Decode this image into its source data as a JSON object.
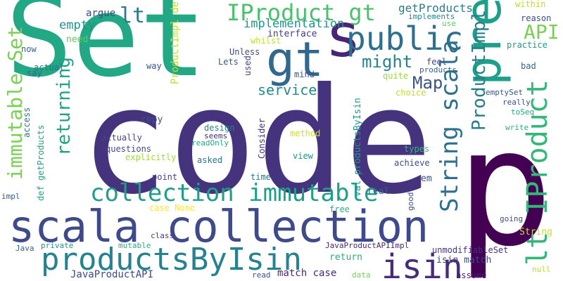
{
  "words": [
    {
      "text": "code",
      "color": "#46337e"
    },
    {
      "text": "p",
      "color": "#440154"
    },
    {
      "text": "Set",
      "color": "#22a884"
    },
    {
      "text": "scala collection",
      "color": "#3e4a89"
    },
    {
      "text": "s",
      "color": "#482576"
    },
    {
      "text": "pre",
      "color": "#1f9e89"
    },
    {
      "text": "gt",
      "color": "#31688e"
    },
    {
      "text": "public",
      "color": "#2d708e"
    },
    {
      "text": "productsByIsin",
      "color": "#26828e"
    },
    {
      "text": "isin",
      "color": "#472c7a"
    },
    {
      "text": "lt IProduct",
      "color": "#35b779"
    },
    {
      "text": "collection immutable",
      "color": "#1f9e89"
    },
    {
      "text": "immutable Set",
      "color": "#7ad151"
    },
    {
      "text": "String scala",
      "color": "#2c728e"
    },
    {
      "text": "ProductImpl",
      "color": "#277f8e"
    },
    {
      "text": "IProduct gt",
      "color": "#4ac16d"
    },
    {
      "text": "lt",
      "color": "#2a788e"
    },
    {
      "text": "API",
      "color": "#7ad151"
    },
    {
      "text": "might",
      "color": "#26828e"
    },
    {
      "text": "Map",
      "color": "#3b528b"
    },
    {
      "text": "returning",
      "color": "#20a486"
    },
    {
      "text": "service",
      "color": "#23898e"
    },
    {
      "text": "implementation",
      "color": "#1f968b"
    },
    {
      "text": "getProducts",
      "color": "#287d8e"
    },
    {
      "text": "empty",
      "color": "#21918c"
    },
    {
      "text": "argue",
      "color": "#414487"
    },
    {
      "text": "ProductImpl def",
      "color": "#bddf26"
    },
    {
      "text": "interface",
      "color": "#433e85"
    },
    {
      "text": "need",
      "color": "#5ec962"
    },
    {
      "text": "now",
      "color": "#33638d"
    },
    {
      "text": "Unless",
      "color": "#3e4989"
    },
    {
      "text": "Lets",
      "color": "#375a8c"
    },
    {
      "text": "whilst",
      "color": "#c2df23"
    },
    {
      "text": "mind",
      "color": "#3b528b"
    },
    {
      "text": "used",
      "color": "#3f4788"
    },
    {
      "text": "way",
      "color": "#39568c"
    },
    {
      "text": "actual",
      "color": "#2d708e"
    },
    {
      "text": "say",
      "color": "#31688e"
    },
    {
      "text": "access",
      "color": "#297a8e"
    },
    {
      "text": "def getProducts",
      "color": "#20a486"
    },
    {
      "text": "copy",
      "color": "#3b528b"
    },
    {
      "text": "design",
      "color": "#25848e"
    },
    {
      "text": "seems",
      "color": "#472d7b"
    },
    {
      "text": "actually",
      "color": "#414487"
    },
    {
      "text": "questions",
      "color": "#3e4989"
    },
    {
      "text": "explicitly",
      "color": "#a0da39"
    },
    {
      "text": "readOnly",
      "color": "#25ab82"
    },
    {
      "text": "asked",
      "color": "#2c728e"
    },
    {
      "text": "point",
      "color": "#404688"
    },
    {
      "text": "case None",
      "color": "#fde725"
    },
    {
      "text": "Consider",
      "color": "#46307e"
    },
    {
      "text": "method",
      "color": "#d2e21b"
    },
    {
      "text": "val productsByIsin",
      "color": "#1f988b"
    },
    {
      "text": "time",
      "color": "#2a788e"
    },
    {
      "text": "view",
      "color": "#1f958b"
    },
    {
      "text": "achieve",
      "color": "#3d4e8a"
    },
    {
      "text": "types",
      "color": "#35b779"
    },
    {
      "text": "em",
      "color": "#3a548c"
    },
    {
      "text": "real",
      "color": "#33638d"
    },
    {
      "text": "free",
      "color": "#2db27d"
    },
    {
      "text": "good",
      "color": "#3d4e8a"
    },
    {
      "text": "going",
      "color": "#3e4c8a"
    },
    {
      "text": "class",
      "color": "#453781"
    },
    {
      "text": "private",
      "color": "#1f958b"
    },
    {
      "text": "mutable",
      "color": "#26ad81"
    },
    {
      "text": "Java",
      "color": "#34608d"
    },
    {
      "text": "impl",
      "color": "#38588c"
    },
    {
      "text": "JavaProductAPI",
      "color": "#3e4989"
    },
    {
      "text": "JavaProductAPIImpl",
      "color": "#482677"
    },
    {
      "text": "match case",
      "color": "#482878"
    },
    {
      "text": "return",
      "color": "#28ae80"
    },
    {
      "text": "isin match",
      "color": "#3f4889"
    },
    {
      "text": "unmodifiableSet",
      "color": "#46327e"
    },
    {
      "text": "String",
      "color": "#c8e020"
    },
    {
      "text": "null",
      "color": "#b5de2b"
    },
    {
      "text": "assume",
      "color": "#481f70"
    },
    {
      "text": "read",
      "color": "#3a548c"
    },
    {
      "text": "data",
      "color": "#73d056"
    },
    {
      "text": "within",
      "color": "#c0df25"
    },
    {
      "text": "reason",
      "color": "#3d4d8a"
    },
    {
      "text": "practice",
      "color": "#1e9c89"
    },
    {
      "text": "bad",
      "color": "#31678e"
    },
    {
      "text": "emptySet",
      "color": "#39568c"
    },
    {
      "text": "really",
      "color": "#3b518b"
    },
    {
      "text": "toSeq",
      "color": "#22a884"
    },
    {
      "text": "write",
      "color": "#2db27d"
    },
    {
      "text": "implements",
      "color": "#25858e"
    },
    {
      "text": "use",
      "color": "#5ec962"
    },
    {
      "text": "feel",
      "color": "#3f4788"
    },
    {
      "text": "products",
      "color": "#355f8d"
    },
    {
      "text": "quite",
      "color": "#9bd93c"
    },
    {
      "text": "choice",
      "color": "#bddf26"
    }
  ]
}
